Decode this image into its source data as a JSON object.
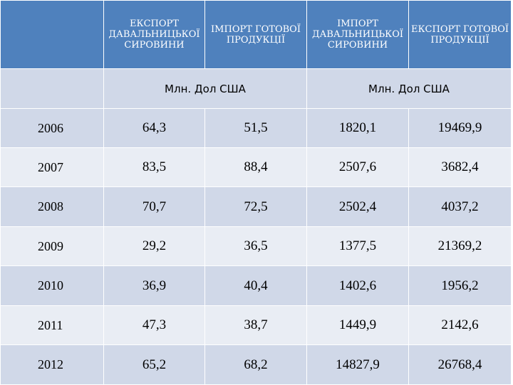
{
  "table": {
    "headers": [
      "",
      "ЕКСПОРТ ДАВАЛЬНИЦЬКОЇ СИРОВИНИ",
      "ІМПОРТ ГОТОВОЇ ПРОДУКЦІЇ",
      "ІМПОРТ ДАВАЛЬНИЦЬКОЇ СИРОВИНИ",
      "ЕКСПОРТ ГОТОВОЇ ПРОДУКЦІЇ"
    ],
    "units": [
      "",
      "Млн. Дол США",
      "Млн. Дол США"
    ],
    "rows": [
      {
        "year": "2006",
        "values": [
          "64,3",
          "51,5",
          "1820,1",
          "19469,9"
        ]
      },
      {
        "year": "2007",
        "values": [
          "83,5",
          "88,4",
          "2507,6",
          "3682,4"
        ]
      },
      {
        "year": "2008",
        "values": [
          "70,7",
          "72,5",
          "2502,4",
          "4037,2"
        ]
      },
      {
        "year": "2009",
        "values": [
          "29,2",
          "36,5",
          "1377,5",
          "21369,2"
        ]
      },
      {
        "year": "2010",
        "values": [
          "36,9",
          "40,4",
          "1402,6",
          "1956,2"
        ]
      },
      {
        "year": "2011",
        "values": [
          "47,3",
          "38,7",
          "1449,9",
          "2142,6"
        ]
      },
      {
        "year": "2012",
        "values": [
          "65,2",
          "68,2",
          "14827,9",
          "26768,4"
        ]
      }
    ]
  },
  "colors": {
    "header_bg": "#4f81bd",
    "row_dark": "#d0d8e8",
    "row_light": "#e9edf4",
    "border": "#ffffff"
  }
}
